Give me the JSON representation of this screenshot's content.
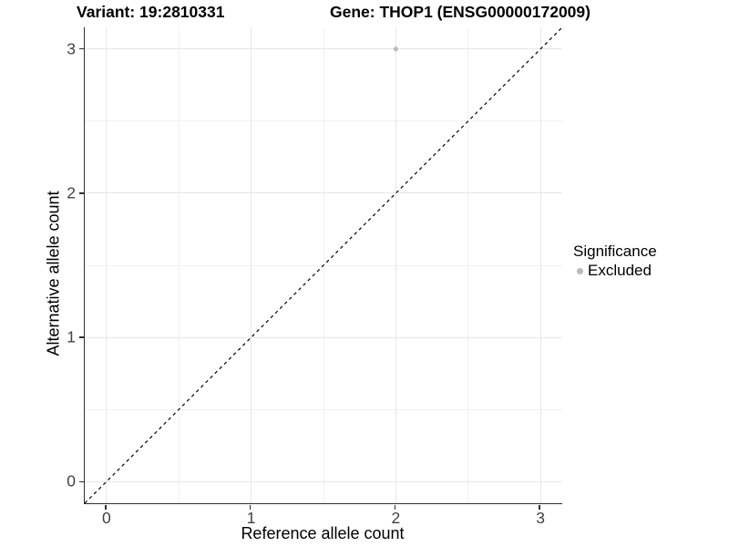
{
  "titles": {
    "left": "Variant: 19:2810331",
    "right": "Gene: THOP1 (ENSG00000172009)"
  },
  "axes": {
    "x_label": "Reference allele count",
    "y_label": "Alternative allele count"
  },
  "legend": {
    "title": "Significance",
    "entries": [
      {
        "label": "Excluded",
        "color": "#b9b9b9"
      }
    ]
  },
  "colors": {
    "background": "#ffffff",
    "axis_line": "#2f2f2f",
    "grid_major": "#e7e7e7",
    "grid_minor": "#f2f2f2",
    "reference_line": "#000000",
    "point": "#bcbcbc",
    "tick_text": "#424242"
  },
  "chart_data": {
    "type": "scatter",
    "title": "Variant: 19:2810331    Gene: THOP1 (ENSG00000172009)",
    "xlabel": "Reference allele count",
    "ylabel": "Alternative allele count",
    "xlim": [
      -0.15,
      3.15
    ],
    "ylim": [
      -0.15,
      3.15
    ],
    "x_ticks": [
      0,
      1,
      2,
      3
    ],
    "y_ticks": [
      0,
      1,
      2,
      3
    ],
    "x_minor_ticks": [
      0.5,
      1.5,
      2.5
    ],
    "y_minor_ticks": [
      0.5,
      1.5,
      2.5
    ],
    "grid": true,
    "reference_line": {
      "kind": "identity",
      "equation": "y = x",
      "style": "dashed",
      "color": "#000000"
    },
    "legend_position": "right",
    "series": [
      {
        "name": "Excluded",
        "color": "#bcbcbc",
        "marker": "circle",
        "points": [
          {
            "x": 2,
            "y": 3
          }
        ]
      }
    ]
  }
}
